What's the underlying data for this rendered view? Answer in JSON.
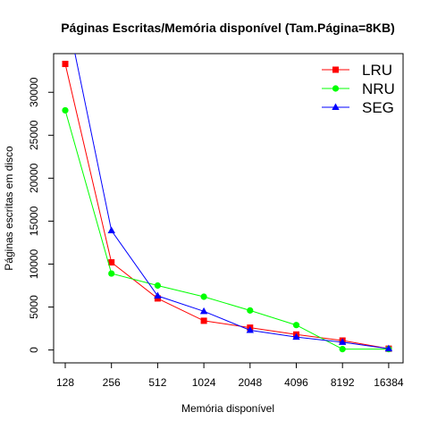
{
  "chart_data": {
    "type": "line",
    "title": "Páginas Escritas/Memória disponível (Tam.Página=8KB)",
    "xlabel": "Memória disponível",
    "ylabel": "Páginas escritas em disco",
    "categories": [
      "128",
      "256",
      "512",
      "1024",
      "2048",
      "4096",
      "8192",
      "16384"
    ],
    "ylim": [
      -1500,
      34500
    ],
    "yticks": [
      0,
      5000,
      10000,
      15000,
      20000,
      25000,
      30000
    ],
    "grid": false,
    "legend_position": "top-right",
    "series": [
      {
        "name": "LRU",
        "color": "#ff0000",
        "marker": "square",
        "values": [
          33300,
          10200,
          6000,
          3400,
          2600,
          1800,
          1100,
          150
        ]
      },
      {
        "name": "NRU",
        "color": "#00ff00",
        "marker": "circle",
        "values": [
          27900,
          8900,
          7500,
          6200,
          4600,
          2900,
          100,
          100
        ]
      },
      {
        "name": "SEG",
        "color": "#0000ff",
        "marker": "triangle",
        "values": [
          40000,
          13900,
          6300,
          4500,
          2300,
          1500,
          900,
          150
        ]
      }
    ]
  }
}
